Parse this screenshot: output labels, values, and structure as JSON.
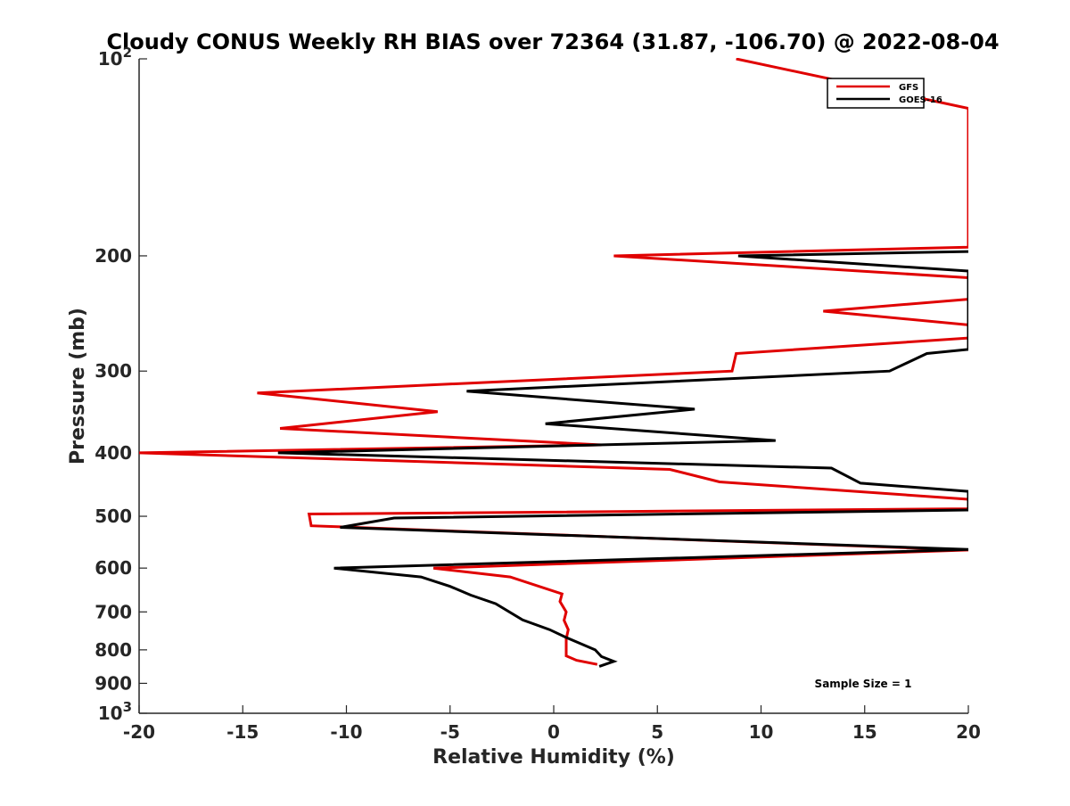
{
  "chart_data": {
    "type": "line",
    "title": "Cloudy CONUS Weekly RH BIAS over 72364 (31.87, -106.70) @ 2022-08-04",
    "xlabel": "Relative Humidity (%)",
    "ylabel": "Pressure (mb)",
    "xlim": [
      -20,
      20
    ],
    "ylim": [
      100,
      1000
    ],
    "yscale": "log",
    "y_reversed": true,
    "grid": false,
    "legend_position": "top-right",
    "annotation": "Sample Size = 1",
    "x_ticks": [
      {
        "value": -20,
        "label": "-20"
      },
      {
        "value": -15,
        "label": "-15"
      },
      {
        "value": -10,
        "label": "-10"
      },
      {
        "value": -5,
        "label": "-5"
      },
      {
        "value": 0,
        "label": "0"
      },
      {
        "value": 5,
        "label": "5"
      },
      {
        "value": 10,
        "label": "10"
      },
      {
        "value": 15,
        "label": "15"
      },
      {
        "value": 20,
        "label": "20"
      }
    ],
    "y_ticks": [
      {
        "value": 100,
        "base": "10",
        "exp": "2"
      },
      {
        "value": 200,
        "label": "200"
      },
      {
        "value": 300,
        "label": "300"
      },
      {
        "value": 400,
        "label": "400"
      },
      {
        "value": 500,
        "label": "500"
      },
      {
        "value": 600,
        "label": "600"
      },
      {
        "value": 700,
        "label": "700"
      },
      {
        "value": 800,
        "label": "800"
      },
      {
        "value": 900,
        "label": "900"
      },
      {
        "value": 1000,
        "base": "10",
        "exp": "3"
      }
    ],
    "series": [
      {
        "name": "GFS",
        "color": "#e00000",
        "points": [
          [
            8.8,
            100
          ],
          [
            20,
            119
          ],
          [
            20,
            194
          ],
          [
            2.9,
            200
          ],
          [
            20,
            216
          ],
          [
            20,
            233
          ],
          [
            13,
            243
          ],
          [
            20,
            255
          ],
          [
            20,
            267
          ],
          [
            8.8,
            282
          ],
          [
            8.6,
            300
          ],
          [
            -14.3,
            324
          ],
          [
            -5.6,
            346
          ],
          [
            -13.2,
            367
          ],
          [
            2.3,
            389
          ],
          [
            -20,
            400
          ],
          [
            5.6,
            424
          ],
          [
            8,
            443
          ],
          [
            20,
            471
          ],
          [
            20,
            487
          ],
          [
            -11.8,
            496
          ],
          [
            -11.7,
            517
          ],
          [
            20,
            563
          ],
          [
            -5.8,
            600
          ],
          [
            -2.1,
            619
          ],
          [
            0.4,
            657
          ],
          [
            0.3,
            675
          ],
          [
            0.6,
            700
          ],
          [
            0.5,
            721
          ],
          [
            0.7,
            745
          ],
          [
            0.6,
            770
          ],
          [
            0.6,
            800
          ],
          [
            0.6,
            817
          ],
          [
            1.1,
            830
          ],
          [
            2.1,
            842
          ]
        ]
      },
      {
        "name": "GOES-16",
        "color": "#000000",
        "points": [
          [
            20,
            197
          ],
          [
            8.9,
            200
          ],
          [
            20,
            211
          ],
          [
            20,
            278
          ],
          [
            18,
            282
          ],
          [
            16.2,
            300
          ],
          [
            -4.2,
            322
          ],
          [
            6.8,
            343
          ],
          [
            -0.4,
            361
          ],
          [
            10.7,
            383
          ],
          [
            -13.3,
            400
          ],
          [
            13.4,
            422
          ],
          [
            14.8,
            445
          ],
          [
            20,
            458
          ],
          [
            20,
            489
          ],
          [
            -7.7,
            503
          ],
          [
            -10.3,
            520
          ],
          [
            20,
            562
          ],
          [
            -10.6,
            600
          ],
          [
            -6.4,
            619
          ],
          [
            -5,
            640
          ],
          [
            -4,
            660
          ],
          [
            -2.8,
            680
          ],
          [
            -1.5,
            720
          ],
          [
            -0.2,
            745
          ],
          [
            0.6,
            766
          ],
          [
            2,
            800
          ],
          [
            2.3,
            819
          ],
          [
            2.9,
            833
          ],
          [
            2.2,
            848
          ]
        ]
      }
    ]
  }
}
